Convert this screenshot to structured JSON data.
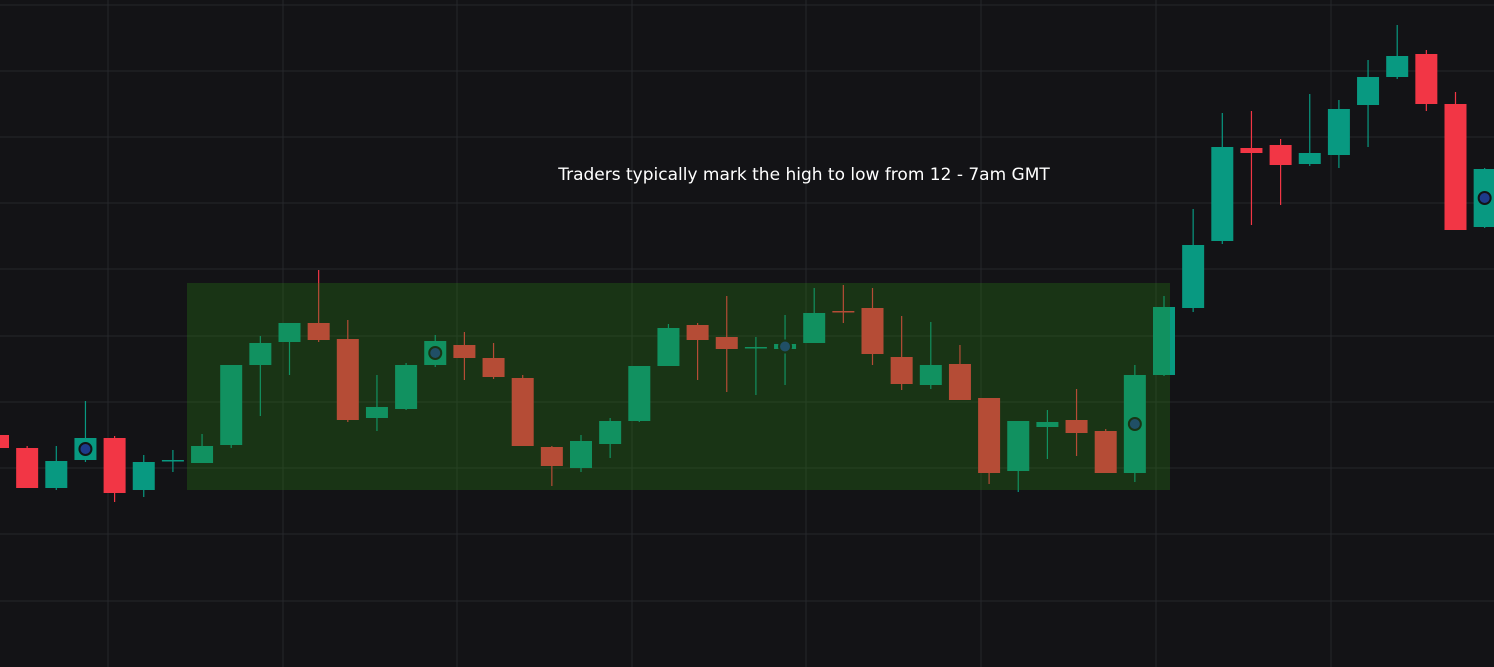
{
  "chart_data": {
    "type": "candlestick",
    "annotation": "Traders typically mark the high to low from 12 - 7am GMT",
    "categories": [
      null,
      null,
      null,
      null,
      null,
      null,
      null,
      null,
      null,
      null,
      null,
      null,
      null,
      null,
      null,
      null,
      null,
      null,
      null,
      null,
      null,
      null,
      null,
      null,
      null,
      null,
      null,
      null,
      null,
      null,
      null,
      null,
      null,
      null,
      null,
      null,
      null,
      null,
      null,
      null,
      null,
      null,
      null,
      null,
      null,
      null,
      null,
      null,
      null,
      null,
      null,
      null
    ],
    "open": [
      232,
      219,
      179,
      207,
      229,
      177,
      206,
      204,
      222,
      302,
      325,
      344,
      328,
      249,
      258,
      302,
      322,
      309,
      289,
      220,
      199,
      223,
      246,
      301,
      342,
      330,
      319,
      318,
      324,
      356,
      359,
      310,
      282,
      303,
      269,
      196,
      240,
      247,
      236,
      194,
      292,
      359,
      426,
      519,
      522,
      503,
      512,
      562,
      590,
      613,
      563,
      440
    ],
    "high": [
      235,
      221,
      221,
      266,
      231,
      212,
      217,
      233,
      302,
      331,
      344,
      397,
      347,
      292,
      304,
      332,
      335,
      324,
      292,
      221,
      232,
      249,
      301,
      343,
      344,
      371,
      330,
      352,
      379,
      382,
      379,
      351,
      345,
      322,
      269,
      246,
      257,
      278,
      238,
      302,
      371,
      458,
      554,
      556,
      528,
      573,
      567,
      607,
      642,
      617,
      575,
      499
    ],
    "low": [
      217,
      179,
      177,
      205,
      165,
      170,
      195,
      204,
      219,
      251,
      292,
      325,
      245,
      236,
      257,
      300,
      287,
      288,
      221,
      181,
      195,
      209,
      245,
      301,
      287,
      275,
      272,
      282,
      324,
      344,
      302,
      277,
      278,
      267,
      183,
      175,
      208,
      211,
      194,
      185,
      291,
      355,
      423,
      442,
      462,
      501,
      499,
      520,
      588,
      556,
      437,
      439
    ],
    "close": [
      219,
      179,
      206,
      229,
      174,
      205,
      207,
      221,
      302,
      324,
      344,
      327,
      247,
      260,
      302,
      326,
      309,
      290,
      221,
      201,
      226,
      246,
      301,
      339,
      327,
      318,
      320,
      323,
      354,
      355,
      313,
      283,
      302,
      267,
      194,
      246,
      245,
      234,
      194,
      292,
      360,
      422,
      520,
      514,
      502,
      514,
      558,
      590,
      611,
      563,
      437,
      498
    ],
    "up_color": "#089981",
    "down_color": "#f23645",
    "ylim": [
      0,
      667
    ]
  }
}
